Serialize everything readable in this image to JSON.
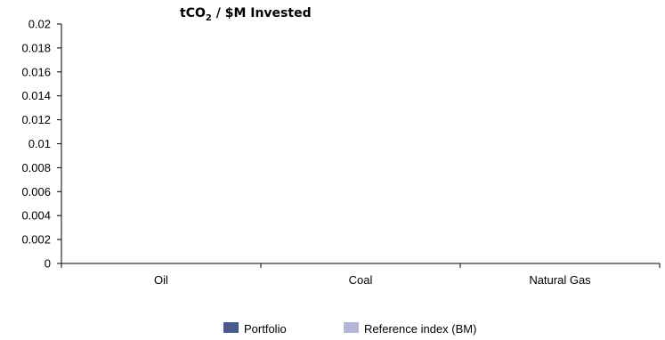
{
  "chart_data": {
    "type": "bar",
    "title": "tCO₂ / $M Invested",
    "categories": [
      "Oil",
      "Coal",
      "Natural Gas"
    ],
    "series": [
      {
        "name": "Portfolio",
        "values": [
          0,
          0,
          0
        ],
        "color": "#4a5a8c"
      },
      {
        "name": "Reference index (BM)",
        "values": [
          0,
          0,
          0
        ],
        "color": "#b4b6d6"
      }
    ],
    "ylim": [
      0,
      0.02
    ],
    "yticks": [
      "0",
      "0.002",
      "0.004",
      "0.006",
      "0.008",
      "0.01",
      "0.012",
      "0.014",
      "0.016",
      "0.018",
      "0.02"
    ],
    "grid": false,
    "legend_position": "bottom"
  }
}
